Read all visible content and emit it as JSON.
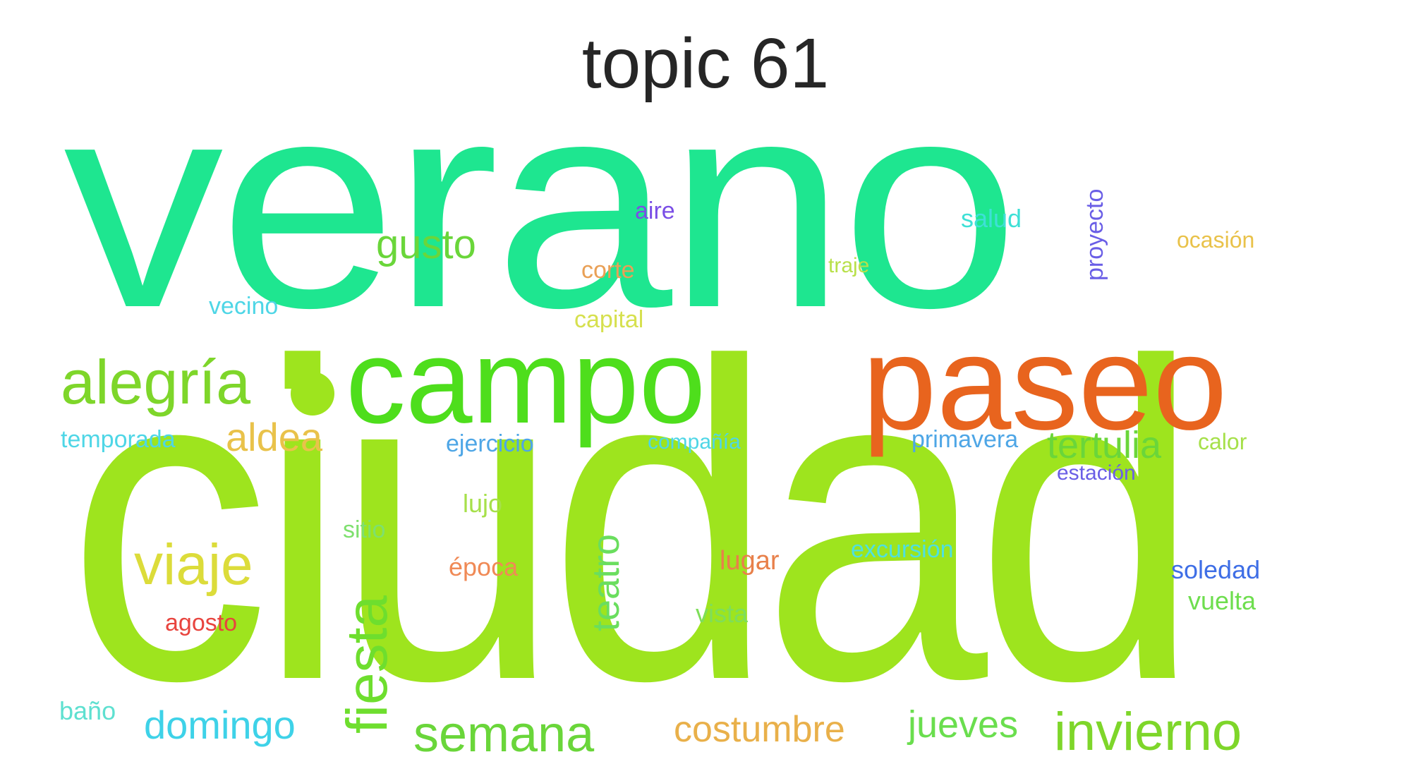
{
  "title": "topic 61",
  "words": [
    {
      "text": "verano",
      "color": "#1ee690",
      "rotate": false
    },
    {
      "text": "ciudad",
      "color": "#9ee41e",
      "rotate": false
    },
    {
      "text": "paseo",
      "color": "#e8641e",
      "rotate": false
    },
    {
      "text": "campo",
      "color": "#4ede1c",
      "rotate": false
    },
    {
      "text": "alegría",
      "color": "#7ed62a",
      "rotate": false
    },
    {
      "text": "gusto",
      "color": "#6ad63a",
      "rotate": false
    },
    {
      "text": "aldea",
      "color": "#e9c24a",
      "rotate": false
    },
    {
      "text": "viaje",
      "color": "#dcdc3a",
      "rotate": false
    },
    {
      "text": "fiesta",
      "color": "#6ede2e",
      "rotate": true
    },
    {
      "text": "teatro",
      "color": "#6ade5e",
      "rotate": true
    },
    {
      "text": "semana",
      "color": "#6ad63a",
      "rotate": false
    },
    {
      "text": "domingo",
      "color": "#3ed2e8",
      "rotate": false
    },
    {
      "text": "costumbre",
      "color": "#e9b04a",
      "rotate": false
    },
    {
      "text": "jueves",
      "color": "#6ade4e",
      "rotate": false
    },
    {
      "text": "invierno",
      "color": "#7ed62a",
      "rotate": false
    },
    {
      "text": "tertulia",
      "color": "#6ad63a",
      "rotate": false
    },
    {
      "text": "aire",
      "color": "#7a4ee6",
      "rotate": false
    },
    {
      "text": "corte",
      "color": "#e9a056",
      "rotate": false
    },
    {
      "text": "capital",
      "color": "#d6e04e",
      "rotate": false
    },
    {
      "text": "traje",
      "color": "#b8e04a",
      "rotate": false
    },
    {
      "text": "salud",
      "color": "#3ee0d6",
      "rotate": false
    },
    {
      "text": "proyecto",
      "color": "#6a5ee6",
      "rotate": true
    },
    {
      "text": "ocasión",
      "color": "#e9c24a",
      "rotate": false
    },
    {
      "text": "vecino",
      "color": "#4ed6e6",
      "rotate": false
    },
    {
      "text": "temporada",
      "color": "#4ed6e6",
      "rotate": false
    },
    {
      "text": "ejercicio",
      "color": "#4ea6e6",
      "rotate": false
    },
    {
      "text": "compañía",
      "color": "#4ed6e6",
      "rotate": false
    },
    {
      "text": "primavera",
      "color": "#4ea6e6",
      "rotate": false
    },
    {
      "text": "calor",
      "color": "#a6e04a",
      "rotate": false
    },
    {
      "text": "estación",
      "color": "#6a5ee6",
      "rotate": false
    },
    {
      "text": "lujo",
      "color": "#a6e04a",
      "rotate": false
    },
    {
      "text": "sitio",
      "color": "#7ee06e",
      "rotate": false
    },
    {
      "text": "época",
      "color": "#f08a56",
      "rotate": false
    },
    {
      "text": "lugar",
      "color": "#e8804a",
      "rotate": false
    },
    {
      "text": "excursión",
      "color": "#4ee0e0",
      "rotate": false
    },
    {
      "text": "soledad",
      "color": "#3e6ee6",
      "rotate": false
    },
    {
      "text": "vuelta",
      "color": "#6ede4e",
      "rotate": false
    },
    {
      "text": "agosto",
      "color": "#e8443e",
      "rotate": false
    },
    {
      "text": "vista",
      "color": "#7ede5a",
      "rotate": false
    },
    {
      "text": "baño",
      "color": "#5ee0d0",
      "rotate": false
    }
  ],
  "dot_color": "#9ee41e"
}
